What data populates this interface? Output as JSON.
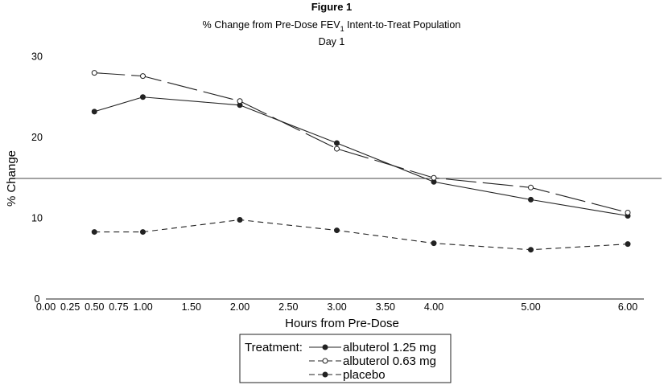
{
  "chart_data": {
    "type": "line",
    "title": "Figure 1",
    "subtitle_main": "% Change from Pre-Dose FEV",
    "subtitle_sub": "1",
    "subtitle_rest": " Intent-to-Treat Population",
    "subtitle2": "Day 1",
    "xlabel": "Hours from Pre-Dose",
    "ylabel": "% Change",
    "x_ticks": [
      "0.00",
      "0.25",
      "0.50",
      "0.75",
      "1.00",
      "1.50",
      "2.00",
      "2.50",
      "3.00",
      "3.50",
      "4.00",
      "5.00",
      "6.00"
    ],
    "y_ticks": [
      "0",
      "10",
      "20",
      "30"
    ],
    "ylim": [
      0,
      30
    ],
    "reference_line": 15,
    "legend_title": "Treatment:",
    "series": [
      {
        "name": "albuterol 1.25 mg",
        "x": [
          0.5,
          1.0,
          2.0,
          3.0,
          4.0,
          5.0,
          6.0
        ],
        "values": [
          23.2,
          25.0,
          24.0,
          19.3,
          14.5,
          12.3,
          10.3
        ]
      },
      {
        "name": "albuterol 0.63 mg",
        "x": [
          0.5,
          1.0,
          2.0,
          3.0,
          4.0,
          5.0,
          6.0
        ],
        "values": [
          28.0,
          27.6,
          24.5,
          18.6,
          15.0,
          13.8,
          10.7
        ]
      },
      {
        "name": "placebo",
        "x": [
          0.5,
          1.0,
          2.0,
          3.0,
          4.0,
          5.0,
          6.0
        ],
        "values": [
          8.3,
          8.3,
          9.8,
          8.5,
          6.9,
          6.1,
          6.8
        ]
      }
    ]
  }
}
